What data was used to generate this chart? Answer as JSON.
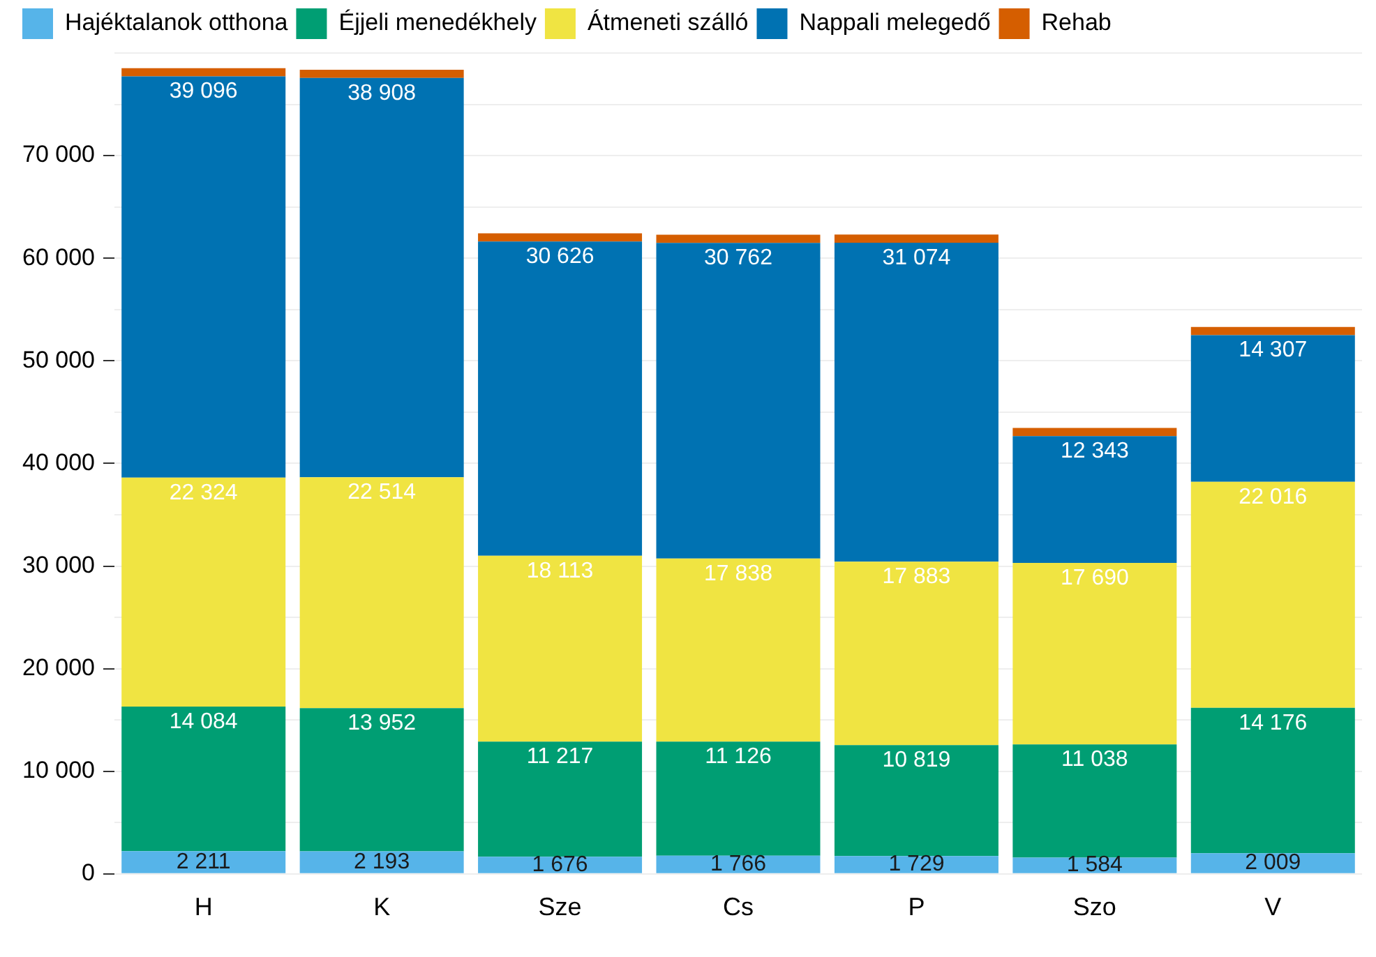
{
  "chart_data": {
    "type": "bar",
    "stacked": true,
    "categories": [
      "H",
      "K",
      "Sze",
      "Cs",
      "P",
      "Szo",
      "V"
    ],
    "series": [
      {
        "name": "Hajéktalanok otthona",
        "color": "#56b4e9",
        "values": [
          2211,
          2193,
          1676,
          1766,
          1729,
          1584,
          2009
        ],
        "value_labels": [
          "2 211",
          "2 193",
          "1 676",
          "1 766",
          "1 729",
          "1 584",
          "2 009"
        ]
      },
      {
        "name": "Éjjeli menedékhely",
        "color": "#009e73",
        "values": [
          14084,
          13952,
          11217,
          11126,
          10819,
          11038,
          14176
        ],
        "value_labels": [
          "14 084",
          "13 952",
          "11 217",
          "11 126",
          "10 819",
          "11 038",
          "14 176"
        ]
      },
      {
        "name": "Átmeneti szálló",
        "color": "#f0e442",
        "values": [
          22324,
          22514,
          18113,
          17838,
          17883,
          17690,
          22016
        ],
        "value_labels": [
          "22 324",
          "22 514",
          "18 113",
          "17 838",
          "17 883",
          "17 690",
          "22 016"
        ]
      },
      {
        "name": "Nappali melegedő",
        "color": "#0072b2",
        "values": [
          39096,
          38908,
          30626,
          30762,
          31074,
          12343,
          14307
        ],
        "value_labels": [
          "39 096",
          "38 908",
          "30 626",
          "30 762",
          "31 074",
          "12 343",
          "14 307"
        ]
      },
      {
        "name": "Rehab",
        "color": "#d55e00",
        "values": [
          800,
          800,
          800,
          800,
          800,
          800,
          800
        ]
      }
    ],
    "ylim": [
      0,
      80000
    ],
    "yticks": [
      {
        "value": 0,
        "label": "0"
      },
      {
        "value": 5000,
        "label": null
      },
      {
        "value": 10000,
        "label": "10 000"
      },
      {
        "value": 15000,
        "label": null
      },
      {
        "value": 20000,
        "label": "20 000"
      },
      {
        "value": 25000,
        "label": null
      },
      {
        "value": 30000,
        "label": "30 000"
      },
      {
        "value": 35000,
        "label": null
      },
      {
        "value": 40000,
        "label": "40 000"
      },
      {
        "value": 45000,
        "label": null
      },
      {
        "value": 50000,
        "label": "50 000"
      },
      {
        "value": 55000,
        "label": null
      },
      {
        "value": 60000,
        "label": "60 000"
      },
      {
        "value": 65000,
        "label": null
      },
      {
        "value": 70000,
        "label": "70 000"
      },
      {
        "value": 75000,
        "label": null
      },
      {
        "value": 80000,
        "label": null
      }
    ],
    "grid": "y",
    "legend": "top"
  }
}
